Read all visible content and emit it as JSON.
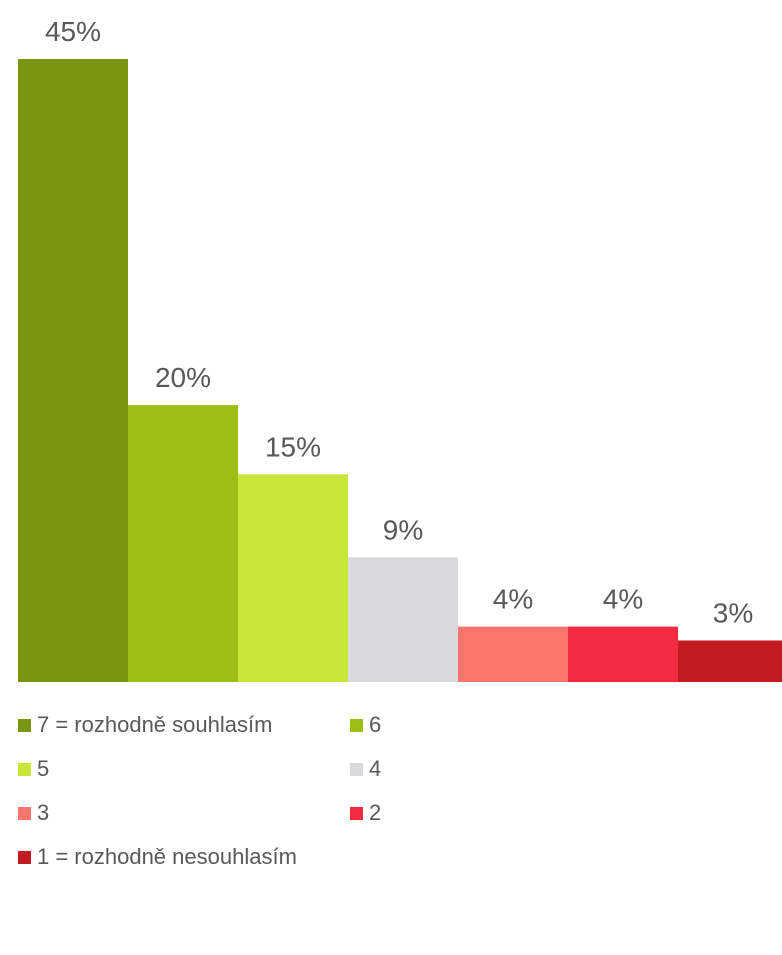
{
  "chart_data": {
    "type": "bar",
    "categories": [
      "7 = rozhodně souhlasím",
      "6",
      "5",
      "4",
      "3",
      "2",
      "1 = rozhodně nesouhlasím"
    ],
    "values": [
      45,
      20,
      15,
      9,
      4,
      4,
      3
    ],
    "value_labels": [
      "45%",
      "20%",
      "15%",
      "9%",
      "4%",
      "4%",
      "3%"
    ],
    "colors": [
      "#7A9611",
      "#9DBD17",
      "#C6E63A",
      "#D9D9DB",
      "#FA756B",
      "#F22B40",
      "#C21C21"
    ],
    "title": "",
    "xlabel": "",
    "ylabel": "",
    "ylim": [
      0,
      45
    ],
    "grid": false,
    "legend_position": "bottom"
  }
}
